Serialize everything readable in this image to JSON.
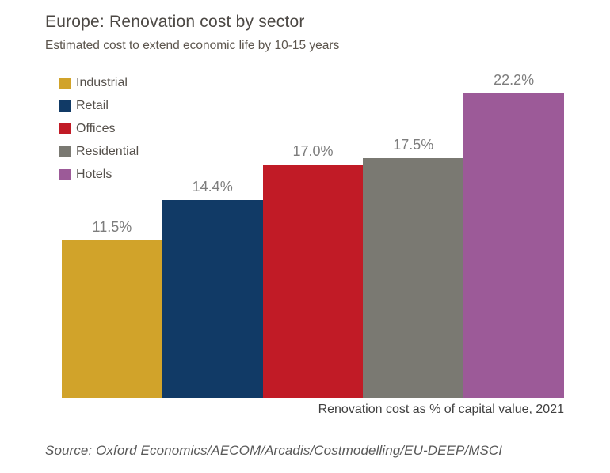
{
  "chart_data": {
    "type": "bar",
    "title": "Europe: Renovation cost by sector",
    "subtitle": "Estimated cost to extend economic life by 10-15 years",
    "categories": [
      "Industrial",
      "Retail",
      "Offices",
      "Residential",
      "Hotels"
    ],
    "values": [
      11.5,
      14.4,
      17.0,
      17.5,
      22.2
    ],
    "value_labels": [
      "11.5%",
      "14.4%",
      "17.0%",
      "17.5%",
      "22.2%"
    ],
    "colors": [
      "#d1a32a",
      "#113a66",
      "#c11b26",
      "#7a7972",
      "#9c5a98"
    ],
    "ylim": [
      0,
      23.4
    ],
    "grid": false,
    "legend_position": "top-left",
    "caption": "Renovation cost as % of capital value, 2021"
  },
  "source_line": "Source: Oxford Economics/AECOM/Arcadis/Costmodelling/EU-DEEP/MSCI"
}
